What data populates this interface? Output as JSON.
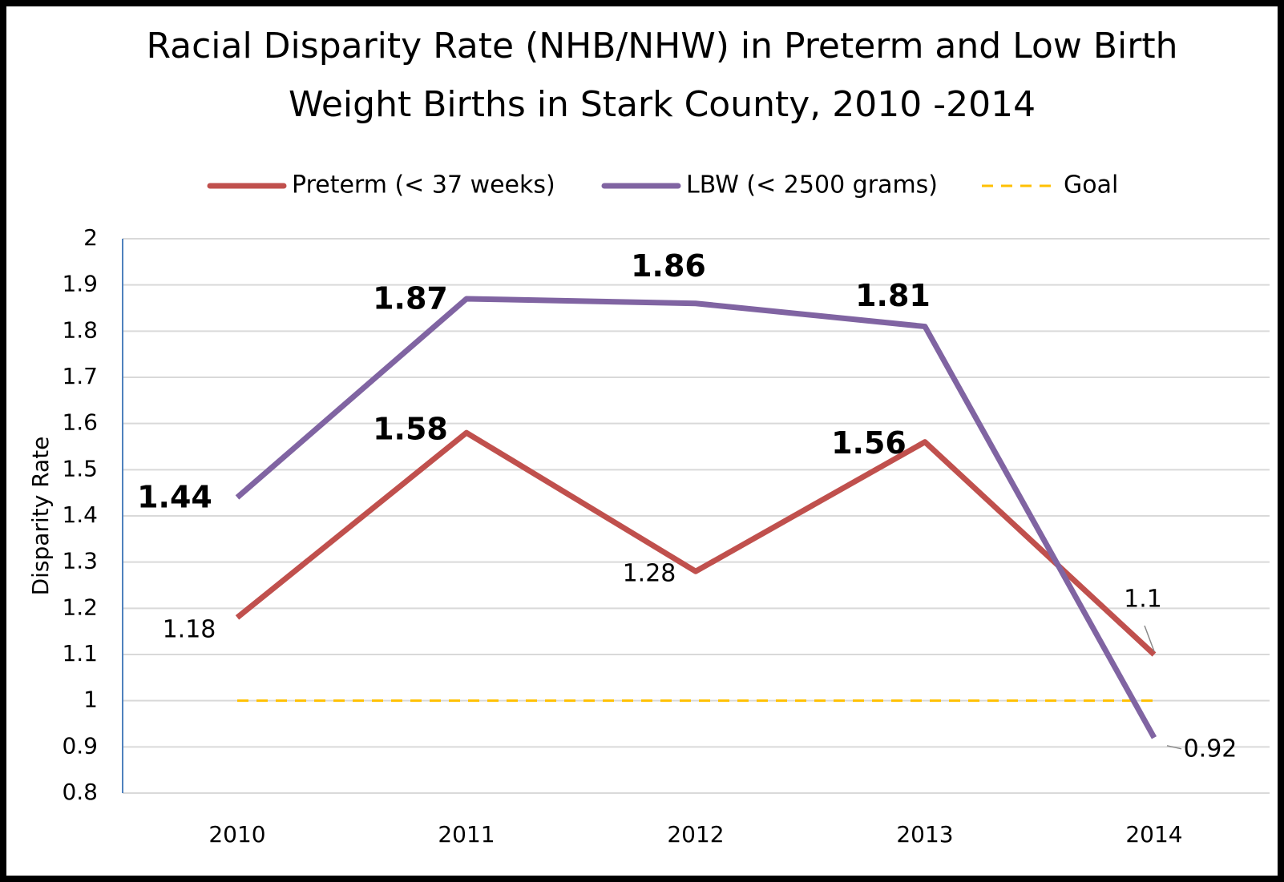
{
  "chart_data": {
    "type": "line",
    "title": [
      "Racial Disparity Rate (NHB/NHW) in Preterm and Low Birth",
      "Weight Births in Stark County, 2010 -2014"
    ],
    "y_axis_label": "Disparity Rate",
    "categories": [
      "2010",
      "2011",
      "2012",
      "2013",
      "2014"
    ],
    "series": [
      {
        "name": "Preterm (< 37 weeks)",
        "color": "#c0504d",
        "values": [
          1.18,
          1.58,
          1.28,
          1.56,
          1.1
        ]
      },
      {
        "name": "LBW (< 2500 grams)",
        "color": "#8064a2",
        "values": [
          1.44,
          1.87,
          1.86,
          1.81,
          0.92
        ]
      },
      {
        "name": "Goal",
        "color": "#ffc000",
        "style": "dashed",
        "values": [
          1,
          1,
          1,
          1,
          1
        ]
      }
    ],
    "ylim": [
      0.8,
      2
    ],
    "yticks": [
      0.8,
      0.9,
      1,
      1.1,
      1.2,
      1.3,
      1.4,
      1.5,
      1.6,
      1.7,
      1.8,
      1.9,
      2
    ],
    "grid": true,
    "legend": "top"
  }
}
